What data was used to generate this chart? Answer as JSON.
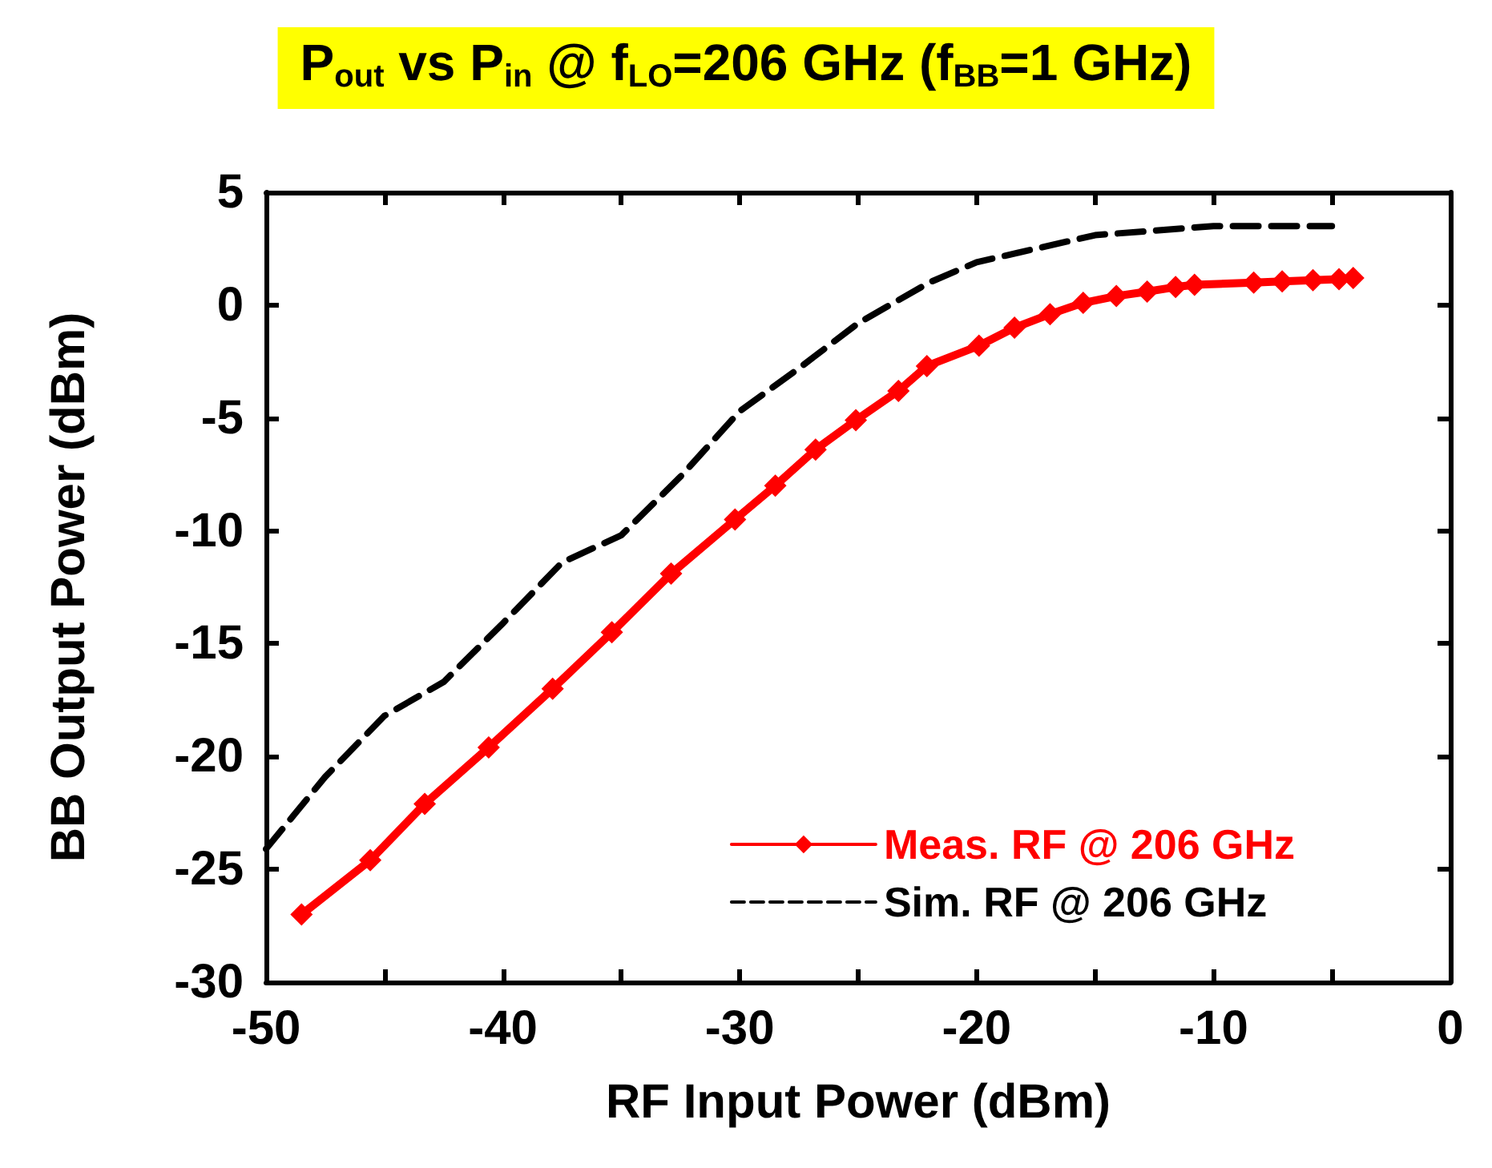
{
  "chart_data": {
    "type": "line",
    "title": "P$_{out}$ vs P$_{in}$ @ f$_{LO}$=206 GHz (f$_{BB}$=1 GHz)",
    "xlabel": "RF Input Power (dBm)",
    "ylabel": "BB Output Power (dBm)",
    "xlim": [
      -50,
      0
    ],
    "xticks": [
      -50,
      {
        "value": -45,
        "label": null
      },
      -40,
      {
        "value": -35,
        "label": null
      },
      -30,
      {
        "value": -25,
        "label": null
      },
      -20,
      {
        "value": -15,
        "label": null
      },
      -10,
      {
        "value": -5,
        "label": null
      },
      0
    ],
    "ylim": [
      -30,
      5
    ],
    "yticks": [
      -30,
      -25,
      -20,
      -15,
      -10,
      -5,
      0,
      5
    ],
    "legend": "bottom right",
    "grid": false,
    "series": [
      {
        "name": "Meas. RF @ 206 GHz",
        "color": "#ff0000",
        "marker": "diamond",
        "line_style": "solid",
        "x": [
          -48.5,
          -45.6,
          -43.3,
          -40.6,
          -37.9,
          -35.4,
          -32.9,
          -30.2,
          -28.5,
          -26.8,
          -25.1,
          -23.3,
          -22.1,
          -19.9,
          -18.4,
          -16.9,
          -15.5,
          -14.1,
          -12.8,
          -11.6,
          -10.8,
          -8.3,
          -7.1,
          -5.8,
          -4.7,
          -4.1
        ],
        "values": [
          -27,
          -24.6,
          -22.1,
          -19.6,
          -17,
          -14.5,
          -11.9,
          -9.5,
          -8,
          -6.4,
          -5.1,
          -3.8,
          -2.7,
          -1.8,
          -1,
          -0.4,
          0.1,
          0.4,
          0.6,
          0.8,
          0.9,
          1,
          1.05,
          1.1,
          1.15,
          1.2
        ]
      },
      {
        "name": "Sim. RF @ 206 GHz",
        "color": "#000000",
        "marker": "none",
        "line_style": "dashed",
        "x": [
          -50,
          -47.5,
          -45,
          -42.5,
          -40,
          -37.5,
          -35,
          -32.5,
          -30,
          -27.5,
          -25,
          -22,
          -20,
          -15,
          -10,
          -5
        ],
        "values": [
          -24.1,
          -20.9,
          -18.2,
          -16.7,
          -14.1,
          -11.4,
          -10.2,
          -7.6,
          -4.7,
          -2.8,
          -0.8,
          1,
          1.9,
          3.1,
          3.5,
          3.5
        ]
      }
    ]
  }
}
